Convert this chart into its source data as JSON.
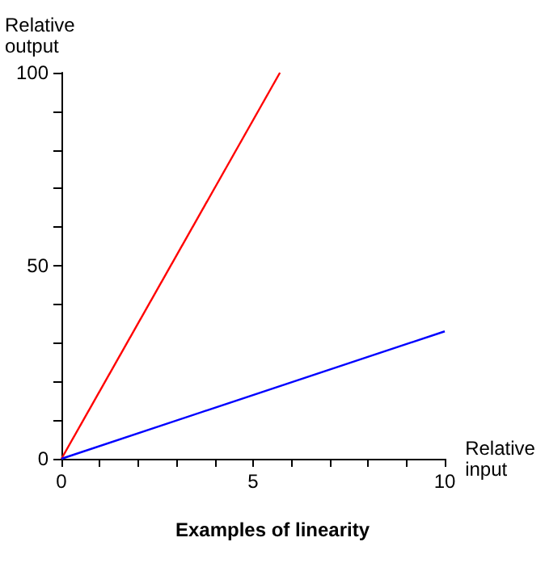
{
  "chart_data": {
    "type": "line",
    "title": "Examples of linearity",
    "xlabel": "Relative\ninput",
    "ylabel": "Relative\noutput",
    "xlim": [
      0,
      10
    ],
    "ylim": [
      0,
      100
    ],
    "xticks": [
      0,
      {
        "value": 1,
        "label": null
      },
      {
        "value": 2,
        "label": null
      },
      {
        "value": 3,
        "label": null
      },
      {
        "value": 4,
        "label": null
      },
      5,
      {
        "value": 6,
        "label": null
      },
      {
        "value": 7,
        "label": null
      },
      {
        "value": 8,
        "label": null
      },
      {
        "value": 9,
        "label": null
      },
      10
    ],
    "yticks": [
      0,
      {
        "value": 10,
        "label": null
      },
      {
        "value": 20,
        "label": null
      },
      {
        "value": 30,
        "label": null
      },
      {
        "value": 40,
        "label": null
      },
      50,
      {
        "value": 60,
        "label": null
      },
      {
        "value": 70,
        "label": null
      },
      {
        "value": 80,
        "label": null
      },
      {
        "value": 90,
        "label": null
      },
      100
    ],
    "series": [
      {
        "color": "#ff0000",
        "x": [
          0,
          5.7
        ],
        "values": [
          0,
          100
        ]
      },
      {
        "color": "#0000ff",
        "x": [
          0,
          10
        ],
        "values": [
          0,
          33
        ]
      }
    ],
    "marker": "none",
    "grid": false
  }
}
